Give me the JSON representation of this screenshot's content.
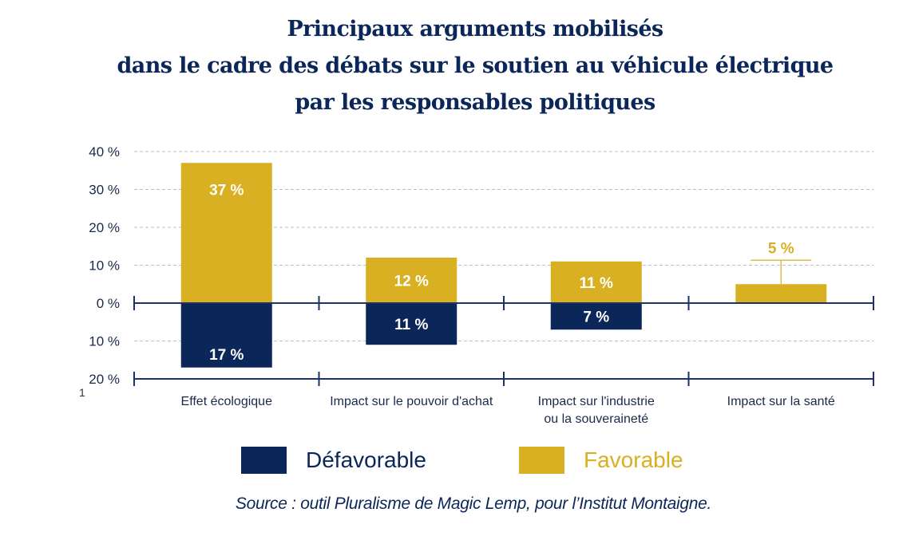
{
  "title_lines": [
    "Principaux arguments mobilisés",
    "dans le cadre des débats sur le soutien au véhicule électrique",
    "par les responsables politiques"
  ],
  "page_marker": "1",
  "colors": {
    "defavorable": "#0b2659",
    "favorable": "#d8b021",
    "axis": "#1b3366",
    "grid": "#b7bfcc"
  },
  "chart_data": {
    "type": "bar",
    "title": "Principaux arguments mobilisés dans le cadre des débats sur le soutien au véhicule électrique par les responsables politiques",
    "xlabel": "",
    "ylabel": "",
    "ylim": [
      -20,
      40
    ],
    "grid": true,
    "legend_position": "bottom",
    "yticks": [
      {
        "value": 40,
        "label": "40 %"
      },
      {
        "value": 30,
        "label": "30 %"
      },
      {
        "value": 20,
        "label": "20 %"
      },
      {
        "value": 10,
        "label": "10 %"
      },
      {
        "value": 0,
        "label": "0 %"
      },
      {
        "value": -10,
        "label": "10 %"
      },
      {
        "value": -20,
        "label": "20 %"
      }
    ],
    "categories": [
      [
        "Effet écologique"
      ],
      [
        "Impact sur le pouvoir d'achat"
      ],
      [
        "Impact sur l'industrie",
        "ou la souveraineté"
      ],
      [
        "Impact sur la santé"
      ]
    ],
    "series": [
      {
        "name": "Favorable",
        "color": "#d8b021",
        "values": [
          37,
          12,
          11,
          5
        ],
        "labels": [
          "37 %",
          "12 %",
          "11 %",
          "5 %"
        ]
      },
      {
        "name": "Défavorable",
        "color": "#0b2659",
        "values": [
          -17,
          -11,
          -7,
          0
        ],
        "labels": [
          "17 %",
          "11 %",
          "7 %",
          ""
        ]
      }
    ]
  },
  "legend": [
    {
      "name": "Défavorable",
      "color": "#0b2659"
    },
    {
      "name": "Favorable",
      "color": "#d8b021"
    }
  ],
  "source": "Source : outil Pluralisme de Magic Lemp, pour l’Institut Montaigne."
}
